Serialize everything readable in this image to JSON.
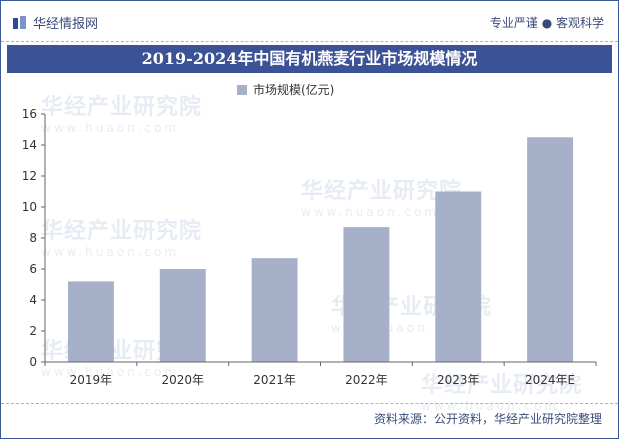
{
  "header": {
    "brand": "华经情报网",
    "motto": "专业严谨 ● 客观科学"
  },
  "watermark": {
    "text": "华经产业研究院",
    "url": "www.huaon.com"
  },
  "footer": {
    "source": "资料来源：公开资料，华经产业研究院整理"
  },
  "chart_data": {
    "type": "bar",
    "title": "2019-2024年中国有机燕麦行业市场规模情况",
    "categories": [
      "2019年",
      "2020年",
      "2021年",
      "2022年",
      "2023年",
      "2024年E"
    ],
    "series": [
      {
        "name": "市场规模(亿元)",
        "values": [
          5.2,
          6.0,
          6.7,
          8.7,
          11.0,
          14.5
        ]
      }
    ],
    "ylim": [
      0,
      16
    ],
    "yticks": [
      0,
      2,
      4,
      6,
      8,
      10,
      12,
      14,
      16
    ],
    "legend_position": "top-center",
    "grid": false,
    "colors": {
      "bar": "#a7b0c9",
      "title_bg": "#3c5296",
      "frame": "#3b5998"
    }
  }
}
